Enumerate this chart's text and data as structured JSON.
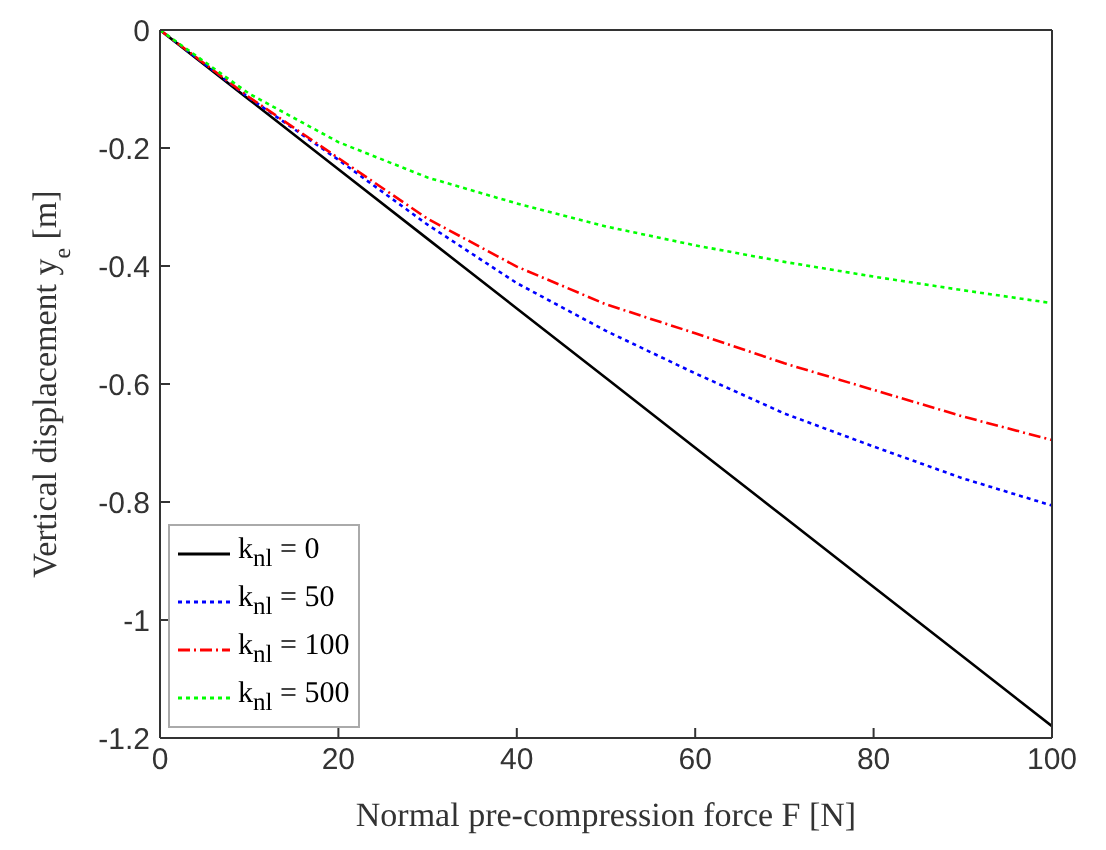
{
  "chart_data": {
    "type": "line",
    "xlabel": "Normal pre-compression force F [N]",
    "ylabel": "Vertical displacement y$_{e}$ [m]",
    "x": [
      0,
      10,
      20,
      30,
      40,
      50,
      60,
      70,
      80,
      90,
      100
    ],
    "series": [
      {
        "name": "k$_{nl}$ = 0",
        "color": "#000000",
        "line_style": "solid",
        "values": [
          0,
          -0.118,
          -0.236,
          -0.354,
          -0.472,
          -0.59,
          -0.708,
          -0.826,
          -0.944,
          -1.062,
          -1.18
        ]
      },
      {
        "name": "k$_{nl}$ = 50",
        "color": "#0000ff",
        "line_style": "dotted",
        "values": [
          0,
          -0.115,
          -0.22,
          -0.33,
          -0.429,
          -0.51,
          -0.582,
          -0.65,
          -0.706,
          -0.76,
          -0.806
        ]
      },
      {
        "name": "k$_{nl}$ = 100",
        "color": "#ff0000",
        "line_style": "dashed",
        "values": [
          0,
          -0.114,
          -0.217,
          -0.32,
          -0.401,
          -0.465,
          -0.514,
          -0.565,
          -0.61,
          -0.655,
          -0.695
        ]
      },
      {
        "name": "k$_{nl}$ = 500",
        "color": "#00ff00",
        "line_style": "dotted",
        "values": [
          0,
          -0.108,
          -0.19,
          -0.25,
          -0.294,
          -0.333,
          -0.365,
          -0.393,
          -0.418,
          -0.441,
          -0.463
        ]
      }
    ],
    "xlim": [
      0,
      100
    ],
    "xticks": [
      0,
      20,
      40,
      60,
      80,
      100
    ],
    "ylim": [
      -1.2,
      0
    ],
    "yticks": [
      -1.2,
      -1,
      -0.8,
      -0.6,
      -0.4,
      -0.2,
      0
    ],
    "grid": false,
    "legend": "bottom left",
    "marker": "none"
  }
}
